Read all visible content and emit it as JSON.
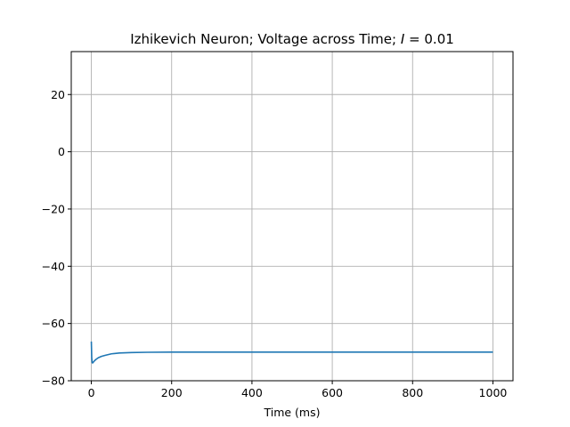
{
  "chart_data": {
    "type": "line",
    "title_main": "Izhikevich Neuron; Voltage across Time; ",
    "title_var": "I",
    "title_rest": " = 0.01",
    "xlabel": "Time (ms)",
    "ylabel": "",
    "xlim": [
      -50,
      1050
    ],
    "ylim": [
      -80,
      35
    ],
    "xticks": [
      0,
      200,
      400,
      600,
      800,
      1000
    ],
    "yticks": [
      -80,
      -60,
      -40,
      -20,
      0,
      20
    ],
    "xtick_labels": [
      "0",
      "200",
      "400",
      "600",
      "800",
      "1000"
    ],
    "ytick_labels": [
      "−80",
      "−60",
      "−40",
      "−20",
      "0",
      "20"
    ],
    "grid": true,
    "series": [
      {
        "color": "#1f77b4",
        "x": [
          0,
          1,
          2,
          3,
          5,
          8,
          12,
          17,
          25,
          35,
          50,
          70,
          100,
          140,
          200,
          300,
          500,
          700,
          1000
        ],
        "y": [
          -66.3,
          -72.0,
          -73.6,
          -73.8,
          -73.5,
          -73.0,
          -72.5,
          -72.0,
          -71.5,
          -71.1,
          -70.6,
          -70.3,
          -70.15,
          -70.05,
          -70.0,
          -70.0,
          -70.0,
          -70.0,
          -70.0
        ]
      }
    ]
  }
}
